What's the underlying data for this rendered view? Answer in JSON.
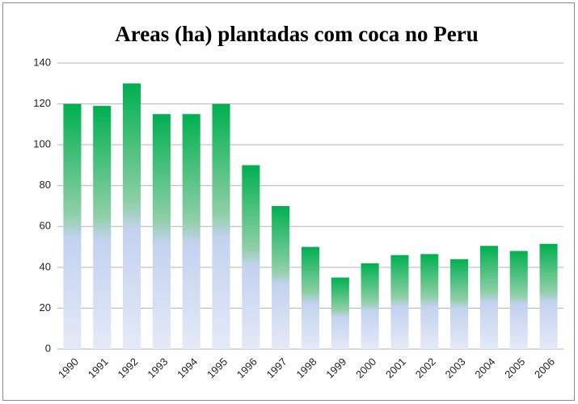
{
  "chart_data": {
    "type": "bar",
    "title": "Areas (ha) plantadas com coca no Peru",
    "categories": [
      "1990",
      "1991",
      "1992",
      "1993",
      "1994",
      "1995",
      "1996",
      "1997",
      "1998",
      "1999",
      "2000",
      "2001",
      "2002",
      "2003",
      "2004",
      "2005",
      "2006"
    ],
    "values": [
      120,
      119,
      130,
      115,
      115,
      120,
      90,
      70,
      50,
      35,
      42,
      46,
      46.5,
      44,
      50.5,
      48,
      51.5
    ],
    "color": "#00b050",
    "ylim": [
      0,
      140
    ],
    "yticks": [
      0,
      20,
      40,
      60,
      80,
      100,
      120,
      140
    ],
    "grid": true
  }
}
